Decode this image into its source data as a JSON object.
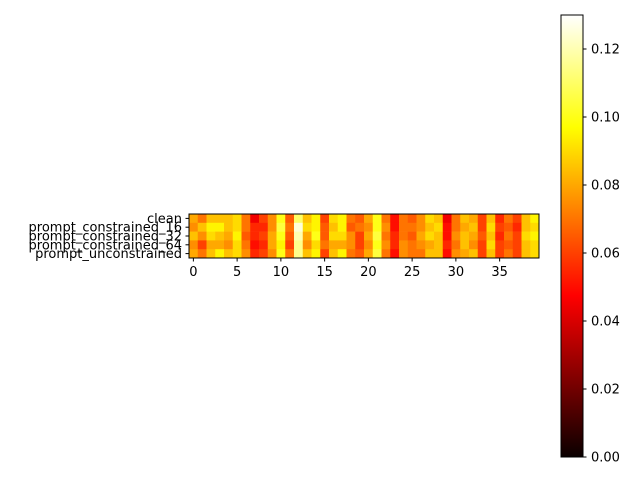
{
  "chart_data": {
    "type": "heatmap",
    "colormap": "hot",
    "rows": [
      "clean",
      "prompt_constrained_16",
      "prompt_constrained_32",
      "prompt_constrained_64",
      "prompt_unconstrained"
    ],
    "columns": [
      0,
      1,
      2,
      3,
      4,
      5,
      6,
      7,
      8,
      9,
      10,
      11,
      12,
      13,
      14,
      15,
      16,
      17,
      18,
      19,
      20,
      21,
      22,
      23,
      24,
      25,
      26,
      27,
      28,
      29,
      30,
      31,
      32,
      33,
      34,
      35,
      36,
      37,
      38,
      39
    ],
    "x_ticks": [
      0,
      5,
      10,
      15,
      20,
      25,
      30,
      35
    ],
    "values": [
      [
        0.08,
        0.07,
        0.085,
        0.085,
        0.085,
        0.09,
        0.07,
        0.045,
        0.06,
        0.075,
        0.1,
        0.065,
        0.11,
        0.085,
        0.095,
        0.06,
        0.09,
        0.095,
        0.07,
        0.065,
        0.08,
        0.1,
        0.07,
        0.05,
        0.07,
        0.065,
        0.075,
        0.09,
        0.085,
        0.045,
        0.07,
        0.085,
        0.08,
        0.06,
        0.085,
        0.055,
        0.07,
        0.06,
        0.085,
        0.095
      ],
      [
        0.075,
        0.085,
        0.095,
        0.095,
        0.085,
        0.09,
        0.07,
        0.055,
        0.055,
        0.075,
        0.105,
        0.07,
        0.125,
        0.09,
        0.095,
        0.065,
        0.085,
        0.095,
        0.065,
        0.07,
        0.075,
        0.1,
        0.075,
        0.05,
        0.07,
        0.07,
        0.075,
        0.085,
        0.09,
        0.05,
        0.07,
        0.08,
        0.085,
        0.06,
        0.09,
        0.06,
        0.065,
        0.055,
        0.085,
        0.09
      ],
      [
        0.085,
        0.075,
        0.09,
        0.085,
        0.08,
        0.095,
        0.065,
        0.055,
        0.06,
        0.08,
        0.1,
        0.065,
        0.12,
        0.08,
        0.1,
        0.065,
        0.09,
        0.09,
        0.075,
        0.06,
        0.08,
        0.105,
        0.07,
        0.055,
        0.07,
        0.065,
        0.08,
        0.09,
        0.085,
        0.05,
        0.075,
        0.085,
        0.08,
        0.065,
        0.085,
        0.055,
        0.07,
        0.06,
        0.09,
        0.095
      ],
      [
        0.075,
        0.06,
        0.08,
        0.08,
        0.075,
        0.09,
        0.07,
        0.05,
        0.055,
        0.08,
        0.095,
        0.06,
        0.115,
        0.075,
        0.09,
        0.07,
        0.08,
        0.08,
        0.075,
        0.06,
        0.075,
        0.1,
        0.075,
        0.055,
        0.075,
        0.07,
        0.075,
        0.08,
        0.085,
        0.055,
        0.07,
        0.085,
        0.075,
        0.06,
        0.09,
        0.06,
        0.065,
        0.06,
        0.085,
        0.09
      ],
      [
        0.08,
        0.07,
        0.085,
        0.095,
        0.085,
        0.09,
        0.075,
        0.055,
        0.06,
        0.075,
        0.1,
        0.07,
        0.115,
        0.085,
        0.095,
        0.06,
        0.085,
        0.095,
        0.07,
        0.065,
        0.08,
        0.105,
        0.07,
        0.05,
        0.075,
        0.07,
        0.07,
        0.085,
        0.085,
        0.05,
        0.075,
        0.08,
        0.085,
        0.06,
        0.085,
        0.06,
        0.07,
        0.06,
        0.085,
        0.09
      ]
    ],
    "colorbar": {
      "range": [
        0.0,
        0.13
      ],
      "ticks": [
        "0.00",
        "0.02",
        "0.04",
        "0.06",
        "0.08",
        "0.10",
        "0.12"
      ]
    }
  }
}
